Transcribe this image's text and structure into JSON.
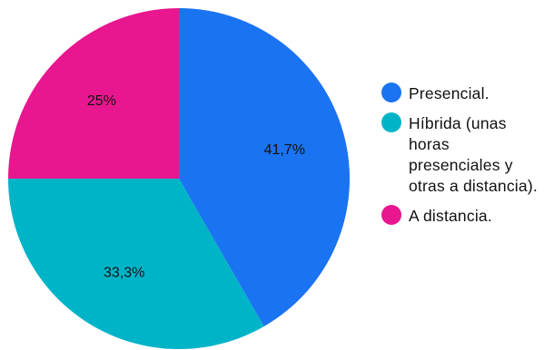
{
  "chart_data": {
    "type": "pie",
    "slices": [
      {
        "label": "Presencial.",
        "value": 41.7,
        "value_label": "41,7%",
        "color": "#1a73f0"
      },
      {
        "label": "Híbrida (unas horas presenciales y otras a distancia).",
        "value": 33.3,
        "value_label": "33,3%",
        "color": "#00b4c8"
      },
      {
        "label": "A distancia.",
        "value": 25,
        "value_label": "25%",
        "color": "#e8168f"
      }
    ],
    "start_angle": "12 o'clock",
    "direction": "clockwise",
    "legend_position": "right"
  },
  "legend": {
    "items": [
      {
        "label": "Presencial.",
        "color": "#1a73f0"
      },
      {
        "label": "Híbrida (unas horas presenciales y otras a distancia).",
        "color": "#00b4c8"
      },
      {
        "label": "A distancia.",
        "color": "#e8168f"
      }
    ]
  }
}
